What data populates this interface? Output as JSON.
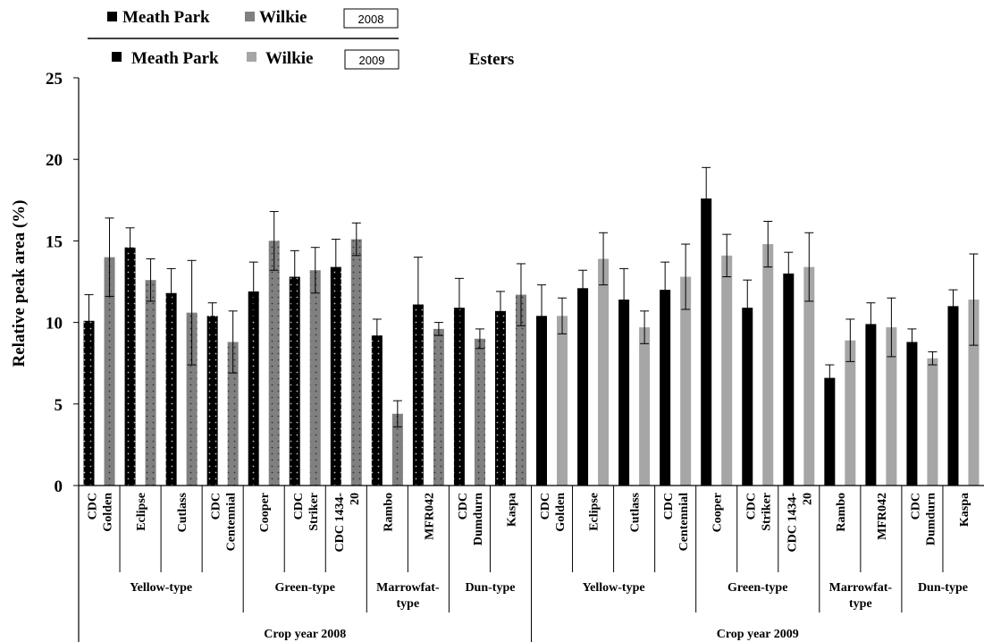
{
  "chart_data": {
    "type": "bar",
    "title": "Esters",
    "ylabel": "Relative peak area (%)",
    "ylim": [
      0,
      25
    ],
    "yticks": [
      0,
      5,
      10,
      15,
      20,
      25
    ],
    "legend_2008": {
      "series1": "Meath Park",
      "series2": "Wilkie",
      "year": "2008"
    },
    "legend_2009": {
      "series1": "Meath Park",
      "series2": "Wilkie",
      "year": "2009"
    },
    "categories": [
      "CDC Golden",
      "Eclipse",
      "Cutlass",
      "CDC Centennial",
      "Cooper",
      "CDC Striker",
      "CDC 1434-20",
      "Rambo",
      "MFR042",
      "CDC Dumdurn",
      "Kaspa",
      "CDC Golden",
      "Eclipse",
      "Cutlass",
      "CDC Centennial",
      "Cooper",
      "CDC Striker",
      "CDC 1434-20",
      "Rambo",
      "MFR042",
      "CDC Dumdurn",
      "Kaspa"
    ],
    "category_lines": [
      [
        "CDC",
        "Golden"
      ],
      [
        "Eclipse"
      ],
      [
        "Cutlass"
      ],
      [
        "CDC",
        "Centennial"
      ],
      [
        "Cooper"
      ],
      [
        "CDC",
        "Striker"
      ],
      [
        "CDC 1434-",
        "20"
      ],
      [
        "Rambo"
      ],
      [
        "MFR042"
      ],
      [
        "CDC",
        "Dumdurn"
      ],
      [
        "Kaspa"
      ],
      [
        "CDC",
        "Golden"
      ],
      [
        "Eclipse"
      ],
      [
        "Cutlass"
      ],
      [
        "CDC",
        "Centennial"
      ],
      [
        "Cooper"
      ],
      [
        "CDC",
        "Striker"
      ],
      [
        "CDC 1434-",
        "20"
      ],
      [
        "Rambo"
      ],
      [
        "MFR042"
      ],
      [
        "CDC",
        "Dumdurn"
      ],
      [
        "Kaspa"
      ]
    ],
    "type_groups": [
      {
        "label": "Yellow-type",
        "start": 0,
        "end": 3
      },
      {
        "label": "Green-type",
        "start": 4,
        "end": 6
      },
      {
        "label": "Marrowfat-type",
        "lines": [
          "Marrowfat-",
          "type"
        ],
        "start": 7,
        "end": 8
      },
      {
        "label": "Dun-type",
        "start": 9,
        "end": 10
      },
      {
        "label": "Yellow-type",
        "start": 11,
        "end": 14
      },
      {
        "label": "Green-type",
        "start": 15,
        "end": 17
      },
      {
        "label": "Marrowfat-type",
        "lines": [
          "Marrowfat-",
          "type"
        ],
        "start": 18,
        "end": 19
      },
      {
        "label": "Dun-type",
        "start": 20,
        "end": 21
      }
    ],
    "year_groups": [
      {
        "label": "Crop year 2008",
        "start": 0,
        "end": 10
      },
      {
        "label": "Crop year 2009",
        "start": 11,
        "end": 21
      }
    ],
    "series": [
      {
        "name": "Meath Park",
        "values": [
          10.1,
          14.6,
          11.8,
          10.4,
          11.9,
          12.8,
          13.4,
          9.2,
          11.1,
          10.9,
          10.7,
          10.4,
          12.1,
          11.4,
          12.0,
          17.6,
          10.9,
          13.0,
          6.6,
          9.9,
          8.8,
          11.0
        ],
        "errors": [
          1.6,
          1.2,
          1.5,
          0.8,
          1.8,
          1.6,
          1.7,
          1.0,
          2.9,
          1.8,
          1.2,
          1.9,
          1.1,
          1.9,
          1.7,
          1.9,
          1.7,
          1.3,
          0.8,
          1.3,
          0.8,
          1.0
        ]
      },
      {
        "name": "Wilkie",
        "values": [
          14.0,
          12.6,
          10.6,
          8.8,
          15.0,
          13.2,
          15.1,
          4.4,
          9.6,
          9.0,
          11.7,
          10.4,
          13.9,
          9.7,
          12.8,
          14.1,
          14.8,
          13.4,
          8.9,
          9.7,
          7.8,
          11.4
        ],
        "errors": [
          2.4,
          1.3,
          3.2,
          1.9,
          1.8,
          1.4,
          1.0,
          0.8,
          0.4,
          0.6,
          1.9,
          1.1,
          1.6,
          1.0,
          2.0,
          1.3,
          1.4,
          2.1,
          1.3,
          1.8,
          0.4,
          2.8
        ]
      }
    ],
    "colors": {
      "meath_2008": "#000000",
      "wilkie_2008": "#808080",
      "meath_2009": "#000000",
      "wilkie_2009": "#a6a6a6"
    }
  }
}
